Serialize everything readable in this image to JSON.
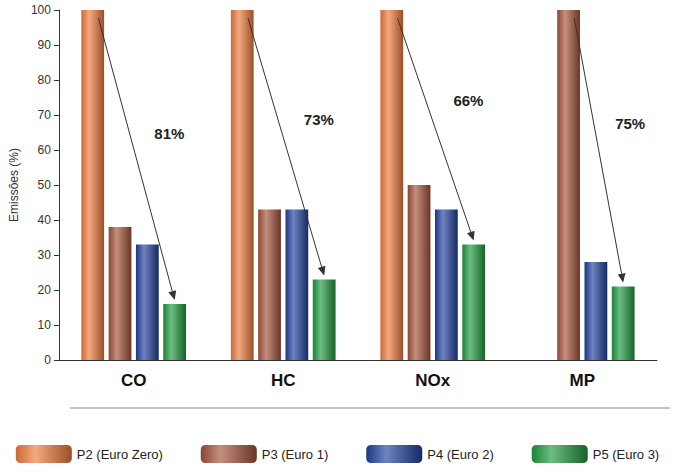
{
  "chart_data": {
    "type": "bar",
    "ylabel": "Emissões (%)",
    "categories": [
      "CO",
      "HC",
      "NOx",
      "MP"
    ],
    "series": [
      {
        "name": "P2 (Euro Zero)",
        "color": "#f07a3c",
        "values": [
          100,
          100,
          100,
          null
        ]
      },
      {
        "name": "P3 (Euro 1)",
        "color": "#a4523a",
        "values": [
          38,
          43,
          50,
          100
        ]
      },
      {
        "name": "P4 (Euro 2)",
        "color": "#20409c",
        "values": [
          33,
          43,
          43,
          28
        ]
      },
      {
        "name": "P5 (Euro 3)",
        "color": "#1f9a3e",
        "values": [
          16,
          23,
          33,
          21
        ]
      }
    ],
    "annotations": [
      {
        "category": "CO",
        "text": "81%"
      },
      {
        "category": "HC",
        "text": "73%"
      },
      {
        "category": "NOx",
        "text": "66%"
      },
      {
        "category": "MP",
        "text": "75%"
      }
    ],
    "ylim": [
      0,
      100
    ],
    "yticks": [
      0,
      10,
      20,
      30,
      40,
      50,
      60,
      70,
      80,
      90,
      100
    ],
    "grid": false,
    "legend": "bottom"
  }
}
